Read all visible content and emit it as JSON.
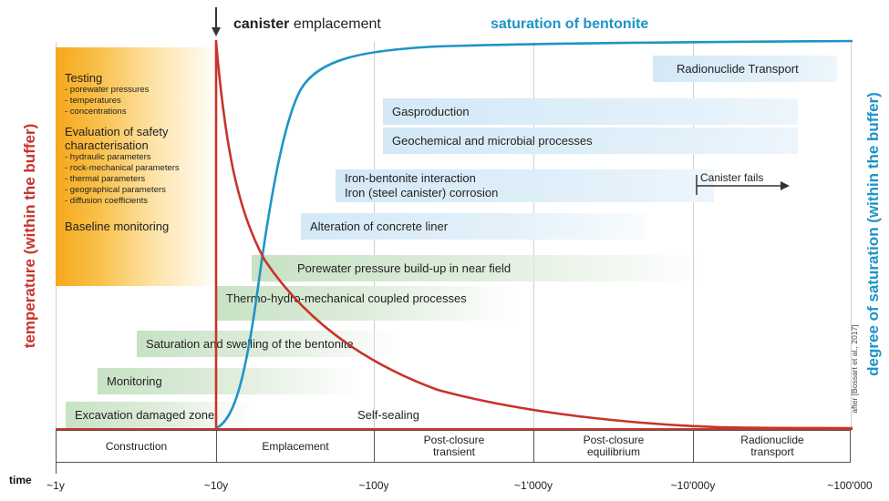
{
  "top": {
    "arrow_label_bold": "canister",
    "arrow_label_rest": " emplacement",
    "saturation_title": "saturation of bentonite"
  },
  "axes": {
    "left_label": "temperature (within the buffer)",
    "right_label": "degree of saturation (within the buffer)",
    "time_label": "time",
    "ticks": [
      "~1y",
      "~10y",
      "~100y",
      "~1'000y",
      "~10'000y",
      "~100'000"
    ],
    "citation": "after [Bossart et al., 2017]"
  },
  "testing_box": {
    "title1": "Testing",
    "items1": [
      "- porewater pressures",
      "- temperatures",
      "- concentrations"
    ],
    "title2a": "Evaluation of safety",
    "title2b": "characterisation",
    "items2": [
      "- hydraulic parameters",
      "- rock-mechanical parameters",
      "- thermal parameters",
      "- geographical parameters",
      "- diffusion coefficients"
    ],
    "title3": "Baseline monitoring"
  },
  "processes": {
    "radionuclide_transport": "Radionuclide Transport",
    "gasproduction": "Gasproduction",
    "geochemical": "Geochemical and microbial processes",
    "iron_bentonite": "Iron-bentonite interaction",
    "iron_corrosion": "Iron (steel canister) corrosion",
    "canister_fails": "Canister fails",
    "concrete": "Alteration of concrete liner",
    "porewater": "Porewater pressure build-up in near field",
    "thm": "Thermo-hydro-mechanical coupled processes",
    "swelling": "Saturation and swelling of the bentonite",
    "monitoring": "Monitoring",
    "edz": "Excavation damaged zone",
    "self_sealing": "Self-sealing"
  },
  "phases": [
    "Construction",
    "Emplacement",
    "Post-closure\ntransient",
    "Post-closure\nequilibrium",
    "Radionuclide\ntransport"
  ],
  "colors": {
    "temperature": "#c8342b",
    "saturation": "#1f94c7",
    "testing_box": "#f6a81b"
  }
}
